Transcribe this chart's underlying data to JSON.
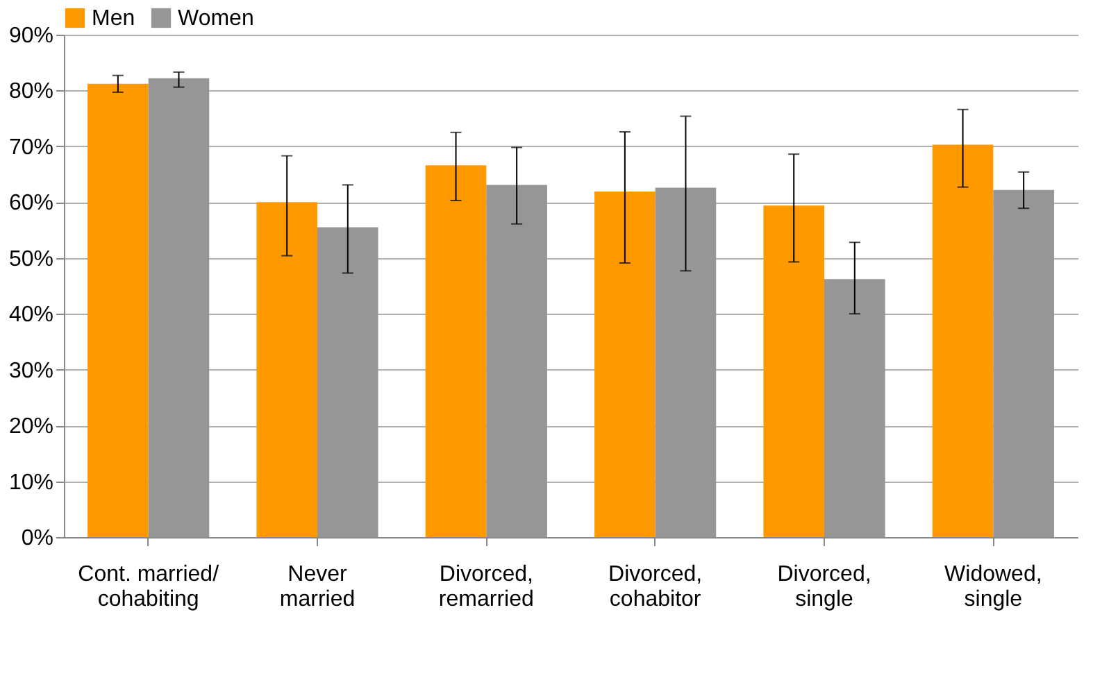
{
  "chart_data": {
    "type": "bar",
    "categories": [
      "Cont. married/ cohabiting",
      "Never married",
      "Divorced, remarried",
      "Divorced, cohabitor",
      "Divorced, single",
      "Widowed, single"
    ],
    "series": [
      {
        "name": "Men",
        "color": "#ff9900",
        "values": [
          81.2,
          60.0,
          66.6,
          61.9,
          59.4,
          70.3
        ],
        "errors": [
          [
            79.7,
            82.7
          ],
          [
            50.4,
            68.3
          ],
          [
            60.3,
            72.5
          ],
          [
            49.1,
            72.6
          ],
          [
            49.3,
            68.6
          ],
          [
            62.7,
            76.6
          ]
        ]
      },
      {
        "name": "Women",
        "color": "#969696",
        "values": [
          82.2,
          55.5,
          63.1,
          62.6,
          46.2,
          62.2
        ],
        "errors": [
          [
            80.6,
            83.3
          ],
          [
            47.3,
            63.1
          ],
          [
            56.1,
            69.8
          ],
          [
            47.7,
            75.4
          ],
          [
            40.0,
            52.8
          ],
          [
            58.9,
            65.4
          ]
        ]
      }
    ],
    "ylim": [
      0,
      90
    ],
    "yticks": [
      {
        "value": 0,
        "label": "0%"
      },
      {
        "value": 10,
        "label": "10%"
      },
      {
        "value": 20,
        "label": "20%"
      },
      {
        "value": 30,
        "label": "30%"
      },
      {
        "value": 40,
        "label": "40%"
      },
      {
        "value": 50,
        "label": "50%"
      },
      {
        "value": 60,
        "label": "60%"
      },
      {
        "value": 70,
        "label": "70%"
      },
      {
        "value": 80,
        "label": "80%"
      },
      {
        "value": 90,
        "label": "90%"
      }
    ],
    "grid": "y",
    "legend": "top"
  }
}
